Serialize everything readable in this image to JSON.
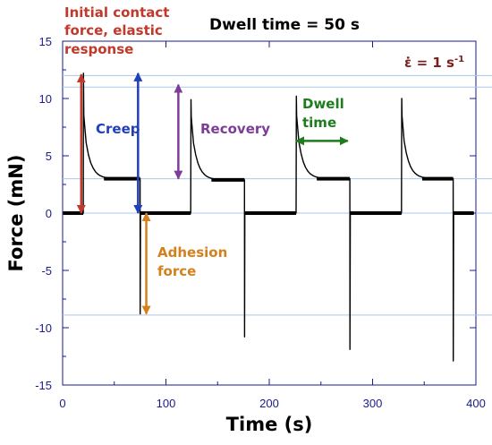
{
  "chart_data": {
    "type": "line",
    "title": "Dwell time = 50 s",
    "xlabel": "Time (s)",
    "ylabel": "Force (mN)",
    "xlim": [
      0,
      400
    ],
    "ylim": [
      -15,
      15
    ],
    "xticks": [
      0,
      100,
      200,
      300,
      400
    ],
    "yticks": [
      -15,
      -10,
      -5,
      0,
      5,
      10,
      15
    ],
    "grid": "horizontal reference lines only",
    "strain_rate_label": {
      "symbol": "ε̇",
      "text": " = 1 s",
      "sup": "-1"
    },
    "series": [
      {
        "cycles": [
          {
            "contact_start": 20,
            "peak": 12.2,
            "relaxed": 3.0,
            "detach": 75,
            "adhesion": -8.8
          },
          {
            "contact_start": 124,
            "peak": 9.9,
            "relaxed": 2.9,
            "detach": 176,
            "adhesion": -10.8
          },
          {
            "contact_start": 226,
            "peak": 10.2,
            "relaxed": 3.0,
            "detach": 278,
            "adhesion": -11.9
          },
          {
            "contact_start": 328,
            "peak": 10.0,
            "relaxed": 3.0,
            "detach": 378,
            "adhesion": -12.9
          }
        ],
        "baseline": 0,
        "end_time": 398
      }
    ],
    "reference_lines": [
      12.0,
      11.0,
      3.0,
      0.0,
      -8.9
    ],
    "annotations": [
      {
        "text": [
          "Initial contact",
          "force, elastic",
          "response"
        ],
        "color": "#c0392b"
      },
      {
        "text": [
          "Creep"
        ],
        "color": "#1f3fbf"
      },
      {
        "text": [
          "Recovery"
        ],
        "color": "#7d3c98"
      },
      {
        "text": [
          "Dwell",
          "time"
        ],
        "color": "#1e7b1e"
      },
      {
        "text": [
          "Adhesion",
          "force"
        ],
        "color": "#d4811d"
      }
    ],
    "arrows": [
      {
        "name": "initial-contact-arrow",
        "color": "#c0392b",
        "x": 18,
        "y1": 0,
        "y2": 12.1
      },
      {
        "name": "creep-arrow",
        "color": "#1f3fbf",
        "x": 73,
        "y1": 0,
        "y2": 12.2
      },
      {
        "name": "recovery-arrow",
        "color": "#7d3c98",
        "x": 112,
        "y1": 3,
        "y2": 11.2
      },
      {
        "name": "adhesion-arrow",
        "color": "#d4811d",
        "x": 81,
        "y1": 0,
        "y2": -8.8
      },
      {
        "name": "dwell-time-arrow",
        "color": "#1e7b1e",
        "x1": 226,
        "x2": 276,
        "y": 6.3
      }
    ]
  }
}
